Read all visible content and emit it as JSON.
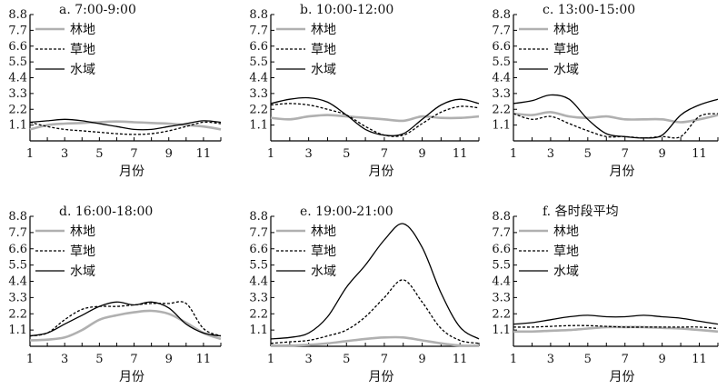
{
  "chart_data": [
    {
      "type": "line",
      "title": "a. 7:00-9:00",
      "xlabel": "月份",
      "ylabel": "",
      "ylim": [
        0,
        8.8
      ],
      "xlim": [
        1,
        12
      ],
      "x_ticks": [
        "1",
        "3",
        "5",
        "7",
        "9",
        "11"
      ],
      "y_ticks": [
        "1.1",
        "2.2",
        "3.3",
        "4.4",
        "5.5",
        "6.6",
        "7.7",
        "8.8"
      ],
      "legend": "top-left",
      "grid": false,
      "x": [
        1,
        2,
        3,
        4,
        5,
        6,
        7,
        8,
        9,
        10,
        11,
        12
      ],
      "series": [
        {
          "name": "林地",
          "color": "#b0b0b0",
          "style": "solid",
          "values": [
            0.8,
            1.1,
            1.2,
            1.25,
            1.3,
            1.35,
            1.3,
            1.25,
            1.2,
            1.1,
            1.0,
            0.8
          ]
        },
        {
          "name": "草地",
          "color": "#000000",
          "style": "dashed",
          "values": [
            1.3,
            1.0,
            0.8,
            0.7,
            0.6,
            0.5,
            0.45,
            0.5,
            0.7,
            1.0,
            1.3,
            1.2
          ]
        },
        {
          "name": "水域",
          "color": "#000000",
          "style": "solid",
          "values": [
            1.3,
            1.4,
            1.5,
            1.4,
            1.2,
            1.0,
            0.8,
            0.8,
            1.0,
            1.2,
            1.4,
            1.3
          ]
        }
      ]
    },
    {
      "type": "line",
      "title": "b. 10:00-12:00",
      "xlabel": "月份",
      "ylabel": "",
      "ylim": [
        0,
        8.8
      ],
      "xlim": [
        1,
        12
      ],
      "x_ticks": [
        "1",
        "3",
        "5",
        "7",
        "9",
        "11"
      ],
      "y_ticks": [
        "1.1",
        "2.2",
        "3.3",
        "4.4",
        "5.5",
        "6.6",
        "7.7",
        "8.8"
      ],
      "legend": "top-left",
      "grid": false,
      "x": [
        1,
        2,
        3,
        4,
        5,
        6,
        7,
        8,
        9,
        10,
        11,
        12
      ],
      "series": [
        {
          "name": "林地",
          "color": "#b0b0b0",
          "style": "solid",
          "values": [
            1.6,
            1.5,
            1.7,
            1.8,
            1.7,
            1.6,
            1.5,
            1.4,
            1.7,
            1.6,
            1.6,
            1.7
          ]
        },
        {
          "name": "草地",
          "color": "#000000",
          "style": "dashed",
          "values": [
            2.5,
            2.6,
            2.5,
            2.2,
            1.8,
            1.0,
            0.4,
            0.4,
            1.2,
            2.0,
            2.4,
            2.3
          ]
        },
        {
          "name": "水域",
          "color": "#000000",
          "style": "solid",
          "values": [
            2.6,
            2.9,
            3.0,
            2.7,
            1.8,
            0.8,
            0.4,
            0.5,
            1.5,
            2.5,
            2.9,
            2.6
          ]
        }
      ]
    },
    {
      "type": "line",
      "title": "c. 13:00-15:00",
      "xlabel": "月份",
      "ylabel": "",
      "ylim": [
        0,
        8.8
      ],
      "xlim": [
        1,
        12
      ],
      "x_ticks": [
        "1",
        "3",
        "5",
        "7",
        "9",
        "11"
      ],
      "y_ticks": [
        "1.1",
        "2.2",
        "3.3",
        "4.4",
        "5.5",
        "6.6",
        "7.7",
        "8.8"
      ],
      "legend": "top-left",
      "grid": false,
      "x": [
        1,
        2,
        3,
        4,
        5,
        6,
        7,
        8,
        9,
        10,
        11,
        12
      ],
      "series": [
        {
          "name": "林地",
          "color": "#b0b0b0",
          "style": "solid",
          "values": [
            1.9,
            1.8,
            2.0,
            1.7,
            1.6,
            1.7,
            1.5,
            1.5,
            1.5,
            1.3,
            1.5,
            1.8
          ]
        },
        {
          "name": "草地",
          "color": "#000000",
          "style": "dashed",
          "values": [
            1.9,
            1.5,
            1.7,
            1.2,
            0.7,
            0.3,
            0.3,
            0.2,
            0.3,
            0.3,
            1.7,
            1.9
          ]
        },
        {
          "name": "水域",
          "color": "#000000",
          "style": "solid",
          "values": [
            2.6,
            2.8,
            3.2,
            2.9,
            1.5,
            0.5,
            0.3,
            0.2,
            0.4,
            1.8,
            2.5,
            2.9
          ]
        }
      ]
    },
    {
      "type": "line",
      "title": "d. 16:00-18:00",
      "xlabel": "月份",
      "ylabel": "",
      "ylim": [
        0,
        8.8
      ],
      "xlim": [
        1,
        12
      ],
      "x_ticks": [
        "1",
        "3",
        "5",
        "7",
        "9",
        "11"
      ],
      "y_ticks": [
        "1.1",
        "2.2",
        "3.3",
        "4.4",
        "5.5",
        "6.6",
        "7.7",
        "8.8"
      ],
      "legend": "top-left",
      "grid": false,
      "x": [
        1,
        2,
        3,
        4,
        5,
        6,
        7,
        8,
        9,
        10,
        11,
        12
      ],
      "series": [
        {
          "name": "林地",
          "color": "#b0b0b0",
          "style": "solid",
          "values": [
            0.4,
            0.45,
            0.6,
            1.1,
            1.8,
            2.1,
            2.3,
            2.4,
            2.2,
            1.6,
            0.9,
            0.5
          ]
        },
        {
          "name": "草地",
          "color": "#000000",
          "style": "dashed",
          "values": [
            0.7,
            0.9,
            1.8,
            2.5,
            2.7,
            2.7,
            2.8,
            2.9,
            2.9,
            2.9,
            1.2,
            0.7
          ]
        },
        {
          "name": "水域",
          "color": "#000000",
          "style": "solid",
          "values": [
            0.7,
            0.9,
            1.5,
            2.1,
            2.7,
            3.0,
            2.8,
            3.0,
            2.6,
            1.5,
            0.9,
            0.7
          ]
        }
      ]
    },
    {
      "type": "line",
      "title": "e. 19:00-21:00",
      "xlabel": "月份",
      "ylabel": "",
      "ylim": [
        0,
        8.8
      ],
      "xlim": [
        1,
        12
      ],
      "x_ticks": [
        "1",
        "3",
        "5",
        "7",
        "9",
        "11"
      ],
      "y_ticks": [
        "1.1",
        "2.2",
        "3.3",
        "4.4",
        "5.5",
        "6.6",
        "7.7",
        "8.8"
      ],
      "legend": "top-left",
      "grid": false,
      "x": [
        1,
        2,
        3,
        4,
        5,
        6,
        7,
        8,
        9,
        10,
        11,
        12
      ],
      "series": [
        {
          "name": "林地",
          "color": "#b0b0b0",
          "style": "solid",
          "values": [
            0.05,
            0.05,
            0.1,
            0.2,
            0.35,
            0.5,
            0.6,
            0.6,
            0.4,
            0.2,
            0.05,
            0.05
          ]
        },
        {
          "name": "草地",
          "color": "#000000",
          "style": "dashed",
          "values": [
            0.2,
            0.3,
            0.4,
            0.7,
            1.1,
            2.0,
            3.3,
            4.5,
            3.0,
            1.2,
            0.4,
            0.2
          ]
        },
        {
          "name": "水域",
          "color": "#000000",
          "style": "solid",
          "values": [
            0.5,
            0.6,
            0.9,
            2.0,
            4.0,
            5.5,
            7.2,
            8.3,
            6.7,
            3.6,
            1.3,
            0.5
          ]
        }
      ]
    },
    {
      "type": "line",
      "title": "f. 各时段平均",
      "xlabel": "月份",
      "ylabel": "",
      "ylim": [
        0,
        8.8
      ],
      "xlim": [
        1,
        12
      ],
      "x_ticks": [
        "1",
        "3",
        "5",
        "7",
        "9",
        "11"
      ],
      "y_ticks": [
        "1.1",
        "2.2",
        "3.3",
        "4.4",
        "5.5",
        "6.6",
        "7.7",
        "8.8"
      ],
      "legend": "top-left",
      "grid": false,
      "x": [
        1,
        2,
        3,
        4,
        5,
        6,
        7,
        8,
        9,
        10,
        11,
        12
      ],
      "series": [
        {
          "name": "林地",
          "color": "#b0b0b0",
          "style": "solid",
          "values": [
            1.0,
            1.0,
            1.05,
            1.1,
            1.2,
            1.3,
            1.3,
            1.3,
            1.25,
            1.2,
            1.1,
            1.0
          ]
        },
        {
          "name": "草地",
          "color": "#000000",
          "style": "dashed",
          "values": [
            1.3,
            1.3,
            1.35,
            1.4,
            1.4,
            1.35,
            1.3,
            1.3,
            1.3,
            1.3,
            1.3,
            1.2
          ]
        },
        {
          "name": "水域",
          "color": "#000000",
          "style": "solid",
          "values": [
            1.5,
            1.6,
            1.8,
            2.0,
            2.1,
            2.0,
            2.0,
            2.1,
            2.0,
            1.9,
            1.7,
            1.5
          ]
        }
      ]
    }
  ]
}
